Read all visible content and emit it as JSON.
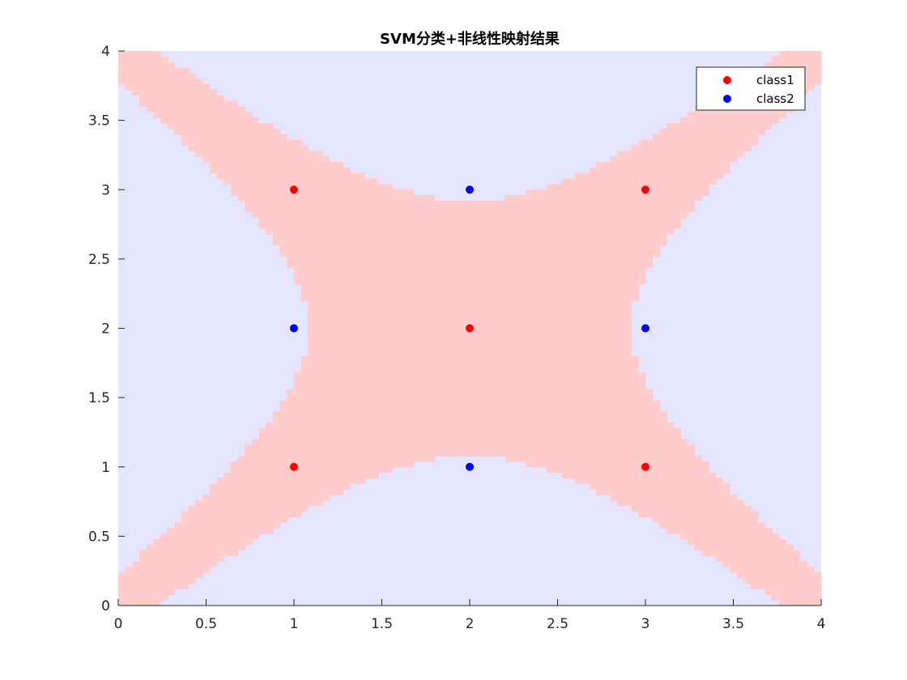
{
  "chart_data": {
    "type": "scatter",
    "title": "SVM分类+非线性映射结果",
    "xlabel": "",
    "ylabel": "",
    "xlim": [
      0,
      4
    ],
    "ylim": [
      0,
      4
    ],
    "xticks": [
      "0",
      "0.5",
      "1",
      "1.5",
      "2",
      "2.5",
      "3",
      "3.5",
      "4"
    ],
    "yticks": [
      "0",
      "0.5",
      "1",
      "1.5",
      "2",
      "2.5",
      "3",
      "3.5",
      "4"
    ],
    "grid": false,
    "legend_position": "top-right",
    "decision_region": {
      "class1_color": "#ffcccc",
      "class2_color": "#e5e5ff",
      "grid_step": 0.04
    },
    "series": [
      {
        "name": "class1",
        "color": "#ff0000",
        "points": [
          [
            1,
            3
          ],
          [
            3,
            3
          ],
          [
            2,
            2
          ],
          [
            1,
            1
          ],
          [
            3,
            1
          ]
        ]
      },
      {
        "name": "class2",
        "color": "#0000ff",
        "points": [
          [
            2,
            3
          ],
          [
            1,
            2
          ],
          [
            3,
            2
          ],
          [
            2,
            1
          ]
        ]
      }
    ]
  }
}
